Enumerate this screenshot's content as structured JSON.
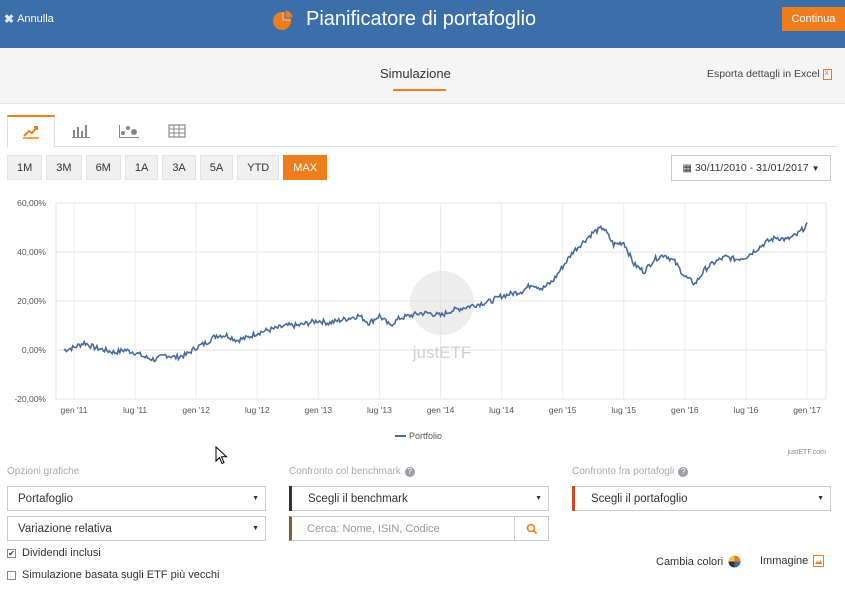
{
  "header": {
    "cancel_label": "Annulla",
    "title": "Pianificatore di portafoglio",
    "continue_label": "Continua"
  },
  "subheader": {
    "tab_label": "Simulazione",
    "export_label": "Esporta dettagli in Excel"
  },
  "chart_tabs": [
    "line-chart-icon",
    "bar-chart-icon",
    "scatter-chart-icon",
    "table-icon"
  ],
  "ranges": {
    "items": [
      "1M",
      "3M",
      "6M",
      "1A",
      "3A",
      "5A",
      "YTD",
      "MAX"
    ],
    "active": "MAX"
  },
  "date_range": "30/11/2010 - 31/01/2017",
  "chart_data": {
    "type": "line",
    "y_ticks": [
      "60,00%",
      "40,00%",
      "20,00%",
      "0,00%",
      "-20,00%"
    ],
    "ylim": [
      -20,
      60
    ],
    "x_ticks": [
      "gen '11",
      "lug '11",
      "gen '12",
      "lug '12",
      "gen '13",
      "lug '13",
      "gen '14",
      "lug '14",
      "gen '15",
      "lug '15",
      "gen '16",
      "lug '16",
      "gen '17"
    ],
    "legend": "Portfolio",
    "watermark": "justETF",
    "credit": "justETF.com",
    "series": [
      {
        "name": "Portfolio",
        "color": "#4a6c9b",
        "x": [
          "2010-12",
          "2011-01",
          "2011-02",
          "2011-03",
          "2011-04",
          "2011-05",
          "2011-06",
          "2011-07",
          "2011-08",
          "2011-09",
          "2011-10",
          "2011-11",
          "2011-12",
          "2012-01",
          "2012-02",
          "2012-03",
          "2012-04",
          "2012-05",
          "2012-06",
          "2012-07",
          "2012-08",
          "2012-09",
          "2012-10",
          "2012-11",
          "2012-12",
          "2013-01",
          "2013-02",
          "2013-03",
          "2013-04",
          "2013-05",
          "2013-06",
          "2013-07",
          "2013-08",
          "2013-09",
          "2013-10",
          "2013-11",
          "2013-12",
          "2014-01",
          "2014-02",
          "2014-03",
          "2014-04",
          "2014-05",
          "2014-06",
          "2014-07",
          "2014-08",
          "2014-09",
          "2014-10",
          "2014-11",
          "2014-12",
          "2015-01",
          "2015-02",
          "2015-03",
          "2015-04",
          "2015-05",
          "2015-06",
          "2015-07",
          "2015-08",
          "2015-09",
          "2015-10",
          "2015-11",
          "2015-12",
          "2016-01",
          "2016-02",
          "2016-03",
          "2016-04",
          "2016-05",
          "2016-06",
          "2016-07",
          "2016-08",
          "2016-09",
          "2016-10",
          "2016-11",
          "2016-12",
          "2017-01"
        ],
        "values": [
          0,
          1,
          3,
          1,
          0,
          -1,
          0,
          -1,
          -3,
          -4,
          -2,
          -3,
          -2,
          1,
          3,
          6,
          6,
          4,
          5,
          7,
          8,
          9,
          10,
          10,
          11,
          12,
          11,
          12,
          13,
          14,
          11,
          14,
          10,
          13,
          14,
          15,
          15,
          14,
          16,
          17,
          18,
          19,
          20,
          22,
          23,
          24,
          27,
          25,
          28,
          34,
          40,
          44,
          48,
          50,
          43,
          44,
          35,
          32,
          37,
          39,
          36,
          30,
          27,
          33,
          36,
          38,
          37,
          38,
          41,
          44,
          46,
          45,
          47,
          51
        ]
      }
    ]
  },
  "options": {
    "graph_label": "Opzioni grafiche",
    "graph_select_1": "Portafoglio",
    "graph_select_2": "Variazione relativa",
    "dividends_label": "Dividendi inclusi",
    "dividends_checked": true,
    "oldest_label": "Simulazione basata sugli ETF più vecchi",
    "oldest_checked": false,
    "benchmark_label": "Confronto col benchmark",
    "benchmark_select": "Scegli il benchmark",
    "search_placeholder": "Cerca: Nome, ISIN, Codice",
    "portfolio_label": "Confronto fra portafogli",
    "portfolio_select": "Scegli il portafoglio",
    "change_colors_label": "Cambia colori",
    "image_label": "Immagine"
  }
}
